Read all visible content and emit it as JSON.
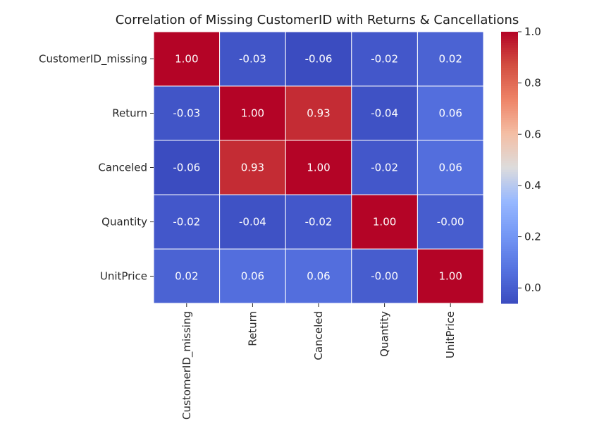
{
  "chart_data": {
    "type": "heatmap",
    "title": "Correlation of Missing CustomerID with Returns & Cancellations",
    "colormap": "coolwarm",
    "row_labels": [
      "CustomerID_missing",
      "Return",
      "Canceled",
      "Quantity",
      "UnitPrice"
    ],
    "col_labels": [
      "CustomerID_missing",
      "Return",
      "Canceled",
      "Quantity",
      "UnitPrice"
    ],
    "values": [
      [
        1.0,
        -0.03,
        -0.06,
        -0.02,
        0.02
      ],
      [
        -0.03,
        1.0,
        0.93,
        -0.04,
        0.06
      ],
      [
        -0.06,
        0.93,
        1.0,
        -0.02,
        0.06
      ],
      [
        -0.02,
        -0.04,
        -0.02,
        1.0,
        -0.0
      ],
      [
        0.02,
        0.06,
        0.06,
        -0.0,
        1.0
      ]
    ],
    "value_labels": [
      [
        "1.00",
        "-0.03",
        "-0.06",
        "-0.02",
        "0.02"
      ],
      [
        "-0.03",
        "1.00",
        "0.93",
        "-0.04",
        "0.06"
      ],
      [
        "-0.06",
        "0.93",
        "1.00",
        "-0.02",
        "0.06"
      ],
      [
        "-0.02",
        "-0.04",
        "-0.02",
        "1.00",
        "-0.00"
      ],
      [
        "0.02",
        "0.06",
        "0.06",
        "-0.00",
        "1.00"
      ]
    ],
    "colorbar": {
      "range": [
        -0.06,
        1.0
      ],
      "ticks": [
        "0.0",
        "0.2",
        "0.4",
        "0.6",
        "0.8",
        "1.0"
      ]
    },
    "grid": false
  }
}
